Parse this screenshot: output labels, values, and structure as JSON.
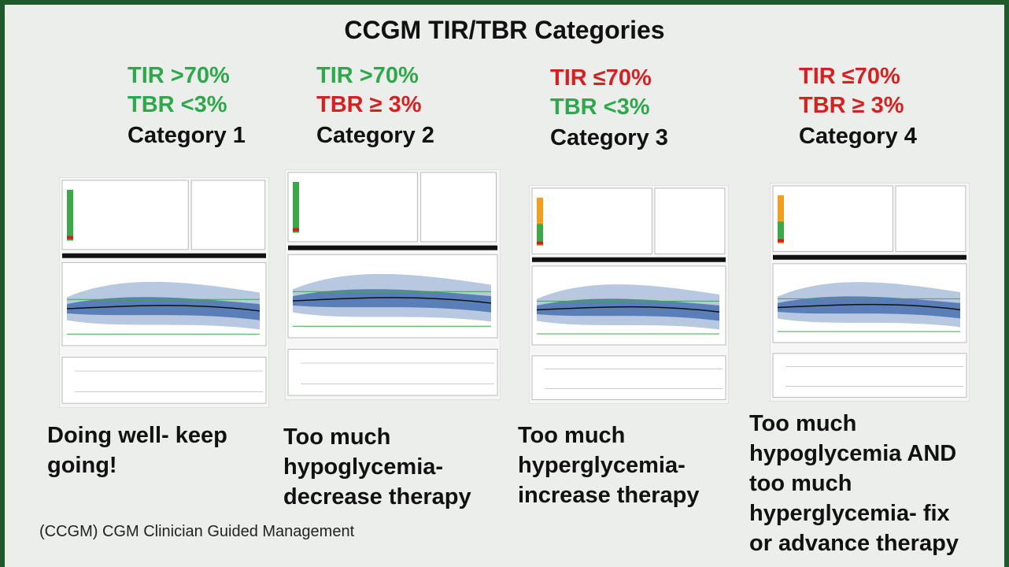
{
  "title": "CCGM TIR/TBR Categories",
  "columns": [
    {
      "tir": {
        "text": "TIR >70%",
        "color": "#2ea84b"
      },
      "tbr": {
        "text": "TBR <3%",
        "color": "#2ea84b"
      },
      "category": "Category 1",
      "description": [
        "Doing well- keep",
        "going!"
      ]
    },
    {
      "tir": {
        "text": "TIR >70%",
        "color": "#2ea84b"
      },
      "tbr": {
        "text": "TBR ≥ 3%",
        "color": "#d42222"
      },
      "category": "Category 2",
      "description": [
        "Too much",
        "hypoglycemia-",
        "decrease therapy"
      ]
    },
    {
      "tir": {
        "text": "TIR ≤70%",
        "color": "#d42222"
      },
      "tbr": {
        "text": "TBR <3%",
        "color": "#2ea84b"
      },
      "category": "Category 3",
      "description": [
        "Too much",
        "hyperglycemia-",
        "increase therapy"
      ]
    },
    {
      "tir": {
        "text": "TIR ≤70%",
        "color": "#d42222"
      },
      "tbr": {
        "text": "TBR ≥ 3%",
        "color": "#d42222"
      },
      "category": "Category 4",
      "description": [
        "Too much",
        "hypoglycemia AND",
        "too much",
        "hyperglycemia- fix",
        "or advance therapy"
      ]
    }
  ],
  "footnote": "(CCGM) CGM Clinician Guided Management"
}
